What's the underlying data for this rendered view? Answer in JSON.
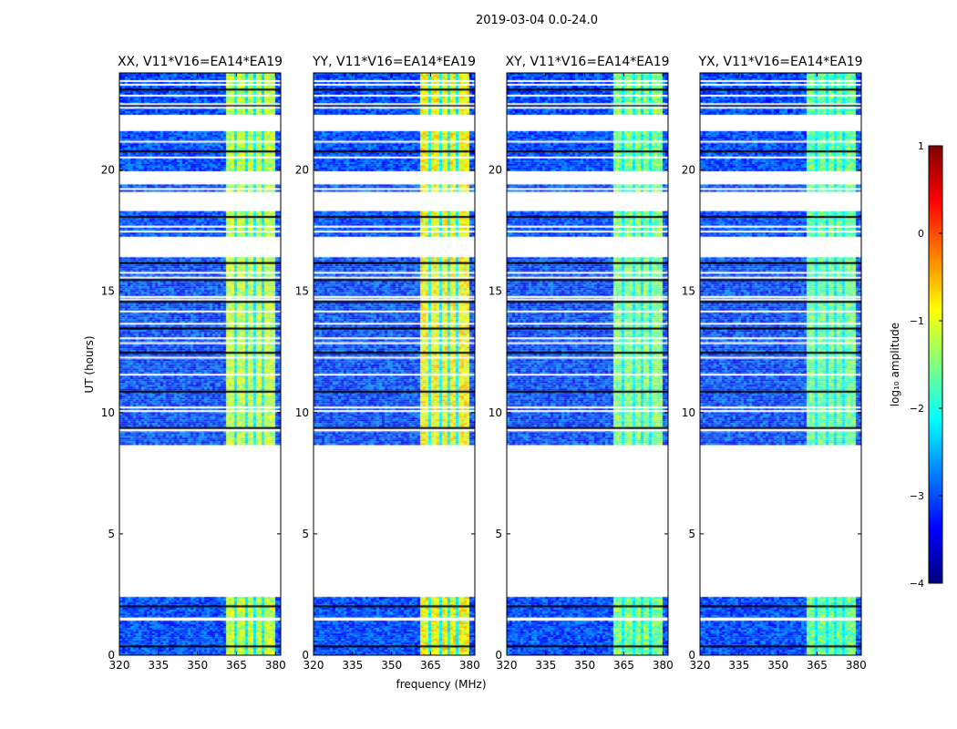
{
  "figure_title": "2019-03-04 0.0-24.0",
  "chart_data": {
    "type": "heatmap",
    "title": "2019-03-04 0.0-24.0",
    "xlabel": "frequency (MHz)",
    "ylabel": "UT (hours)",
    "xlim": [
      320,
      382
    ],
    "ylim": [
      0,
      24
    ],
    "xticks": [
      320,
      335,
      350,
      365,
      380
    ],
    "yticks": [
      0,
      5,
      10,
      15,
      20
    ],
    "panels": [
      {
        "title": "XX, V11*V16=EA14*EA19",
        "band_level": -1.2
      },
      {
        "title": "YY, V11*V16=EA14*EA19",
        "band_level": -0.9
      },
      {
        "title": "XY, V11*V16=EA14*EA19",
        "band_level": -1.5
      },
      {
        "title": "YX, V11*V16=EA14*EA19",
        "band_level": -1.6
      }
    ],
    "bright_band_mhz": [
      360,
      379
    ],
    "band_gaps_mhz": [
      364,
      368,
      371.5,
      375
    ],
    "data_segments_hours": [
      [
        0,
        2.4
      ],
      [
        8.7,
        16.4
      ],
      [
        17.3,
        18.3
      ],
      [
        19.1,
        19.4
      ],
      [
        20.0,
        21.6
      ],
      [
        22.3,
        24.0
      ]
    ],
    "gap_lines_hours": [
      0.4,
      1.5,
      1.55,
      2.05,
      9.3,
      9.35,
      9.4,
      10.1,
      10.25,
      10.9,
      11.6,
      12.3,
      12.5,
      12.9,
      13.1,
      13.5,
      13.7,
      14.2,
      14.6,
      14.7,
      14.8,
      15.5,
      15.6,
      15.8,
      16.2,
      17.5,
      17.7,
      18.1,
      19.25,
      20.55,
      20.8,
      21.2,
      22.6,
      22.7,
      22.75,
      23.1,
      23.35,
      23.55,
      23.7
    ],
    "background_level": -3.0,
    "colorbar": {
      "label": "log₁₀ amplitude",
      "min": -4,
      "max": 1,
      "ticks": [
        1,
        0,
        -1,
        -2,
        -3,
        -4
      ],
      "tick_labels": [
        "1",
        "0",
        "−1",
        "−2",
        "−3",
        "−4"
      ],
      "colormap": "jet"
    }
  }
}
